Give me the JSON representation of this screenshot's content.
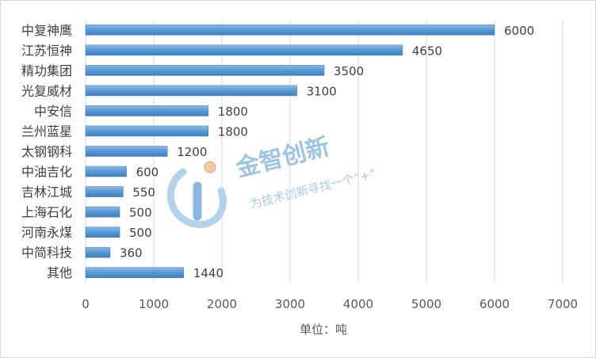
{
  "chart_data": {
    "type": "bar",
    "orientation": "horizontal",
    "categories": [
      "中复神鹰",
      "江苏恒神",
      "精功集团",
      "光复威材",
      "中安信",
      "兰州蓝星",
      "太钢钢科",
      "中油吉化",
      "吉林江城",
      "上海石化",
      "河南永煤",
      "中简科技",
      "其他"
    ],
    "values": [
      6000,
      4650,
      3500,
      3100,
      1800,
      1800,
      1200,
      600,
      550,
      500,
      500,
      360,
      1440
    ],
    "xlabel": "单位：吨",
    "ylabel": "",
    "xlim": [
      0,
      7000
    ],
    "xticks": [
      0,
      1000,
      2000,
      3000,
      4000,
      5000,
      6000,
      7000
    ],
    "grid": "vertical",
    "legend": "none",
    "bar_color": "#5b9bd5"
  },
  "watermark": {
    "title": "金智创新",
    "slogan": "为技术创新寻找一个“+”"
  }
}
